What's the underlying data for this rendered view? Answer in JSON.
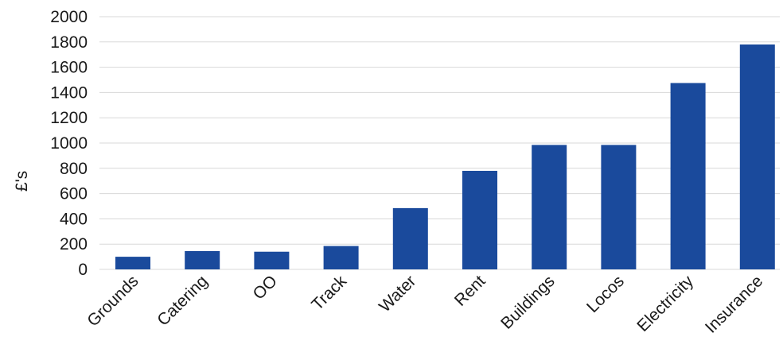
{
  "chart_data": {
    "type": "bar",
    "title": "",
    "xlabel": "",
    "ylabel": "£'s",
    "categories": [
      "Grounds",
      "Catering",
      "OO",
      "Track",
      "Water",
      "Rent",
      "Buildings",
      "Locos",
      "Electricity",
      "Insurance"
    ],
    "values": [
      100,
      145,
      140,
      185,
      485,
      780,
      985,
      985,
      1475,
      1780
    ],
    "ylim": [
      0,
      2000
    ],
    "yticks": [
      0,
      200,
      400,
      600,
      800,
      1000,
      1200,
      1400,
      1600,
      1800,
      2000
    ],
    "grid": true,
    "legend": "none",
    "bar_color": "#1a4a9c",
    "grid_color": "#d8d8d8"
  }
}
